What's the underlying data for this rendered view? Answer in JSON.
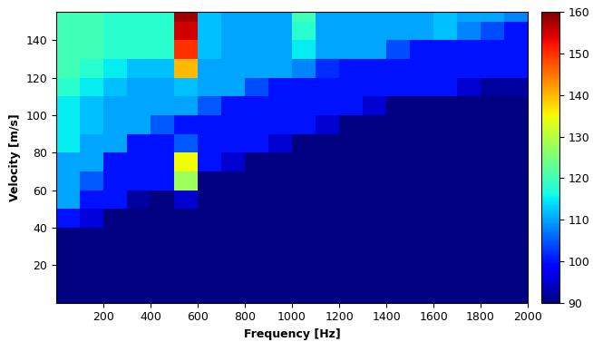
{
  "chart_data": {
    "type": "heatmap",
    "x_label": "Frequency [Hz]",
    "y_label": "Velocity [m/s]",
    "x": [
      50,
      150,
      250,
      350,
      450,
      550,
      650,
      750,
      850,
      950,
      1050,
      1150,
      1250,
      1350,
      1450,
      1550,
      1650,
      1750,
      1850,
      1950
    ],
    "y": [
      5,
      15,
      25,
      35,
      45,
      55,
      65,
      75,
      85,
      95,
      105,
      115,
      125,
      135,
      145,
      155
    ],
    "cells": [
      [
        90,
        90,
        90,
        90,
        90,
        90,
        90,
        90,
        90,
        90,
        90,
        90,
        90,
        90,
        90,
        90,
        90,
        90,
        90,
        90
      ],
      [
        90,
        90,
        90,
        90,
        90,
        90,
        90,
        90,
        90,
        90,
        90,
        90,
        90,
        90,
        90,
        90,
        90,
        90,
        90,
        90
      ],
      [
        90,
        90,
        90,
        90,
        90,
        90,
        90,
        90,
        90,
        90,
        90,
        90,
        90,
        90,
        90,
        90,
        90,
        90,
        90,
        90
      ],
      [
        90,
        90,
        90,
        90,
        90,
        90,
        90,
        90,
        90,
        90,
        90,
        90,
        90,
        90,
        90,
        90,
        90,
        90,
        90,
        90
      ],
      [
        100,
        96,
        90,
        90,
        90,
        90,
        90,
        90,
        90,
        90,
        90,
        90,
        90,
        90,
        90,
        90,
        90,
        90,
        90,
        90
      ],
      [
        110,
        100,
        100,
        92,
        90,
        95,
        90,
        90,
        90,
        90,
        90,
        90,
        90,
        90,
        90,
        90,
        90,
        90,
        90,
        90
      ],
      [
        110,
        105,
        100,
        100,
        100,
        128,
        90,
        90,
        90,
        90,
        90,
        90,
        90,
        90,
        90,
        90,
        90,
        90,
        90,
        90
      ],
      [
        110,
        110,
        100,
        100,
        100,
        135,
        100,
        95,
        90,
        90,
        90,
        90,
        90,
        90,
        90,
        90,
        90,
        90,
        90,
        90
      ],
      [
        115,
        110,
        110,
        100,
        100,
        105,
        100,
        100,
        100,
        95,
        90,
        90,
        90,
        90,
        90,
        90,
        90,
        90,
        90,
        90
      ],
      [
        115,
        112,
        110,
        110,
        105,
        100,
        100,
        100,
        100,
        100,
        100,
        95,
        90,
        90,
        90,
        90,
        90,
        90,
        90,
        90
      ],
      [
        115,
        112,
        110,
        110,
        110,
        110,
        105,
        100,
        100,
        100,
        100,
        100,
        100,
        95,
        90,
        90,
        90,
        90,
        90,
        90
      ],
      [
        118,
        115,
        112,
        110,
        110,
        112,
        110,
        110,
        104,
        100,
        100,
        100,
        100,
        100,
        100,
        100,
        100,
        95,
        92,
        92
      ],
      [
        120,
        118,
        115,
        112,
        112,
        140,
        110,
        110,
        110,
        110,
        108,
        102,
        100,
        100,
        100,
        100,
        100,
        100,
        100,
        100
      ],
      [
        120,
        120,
        118,
        118,
        118,
        150,
        112,
        110,
        110,
        110,
        115,
        110,
        110,
        110,
        104,
        100,
        100,
        100,
        100,
        100
      ],
      [
        120,
        120,
        118,
        118,
        118,
        155,
        112,
        110,
        110,
        110,
        118,
        110,
        110,
        110,
        110,
        110,
        112,
        108,
        104,
        100
      ],
      [
        120,
        120,
        118,
        118,
        118,
        158,
        112,
        110,
        110,
        110,
        120,
        110,
        110,
        110,
        110,
        110,
        112,
        110,
        110,
        108
      ]
    ],
    "xlim": [
      0,
      2000
    ],
    "ylim": [
      0,
      155
    ],
    "xticks": [
      200,
      400,
      600,
      800,
      1000,
      1200,
      1400,
      1600,
      1800,
      2000
    ],
    "yticks": [
      20,
      40,
      60,
      80,
      100,
      120,
      140
    ],
    "colorbar": {
      "range": [
        90,
        160
      ],
      "ticks": [
        90,
        100,
        110,
        120,
        130,
        140,
        150,
        160
      ]
    }
  }
}
